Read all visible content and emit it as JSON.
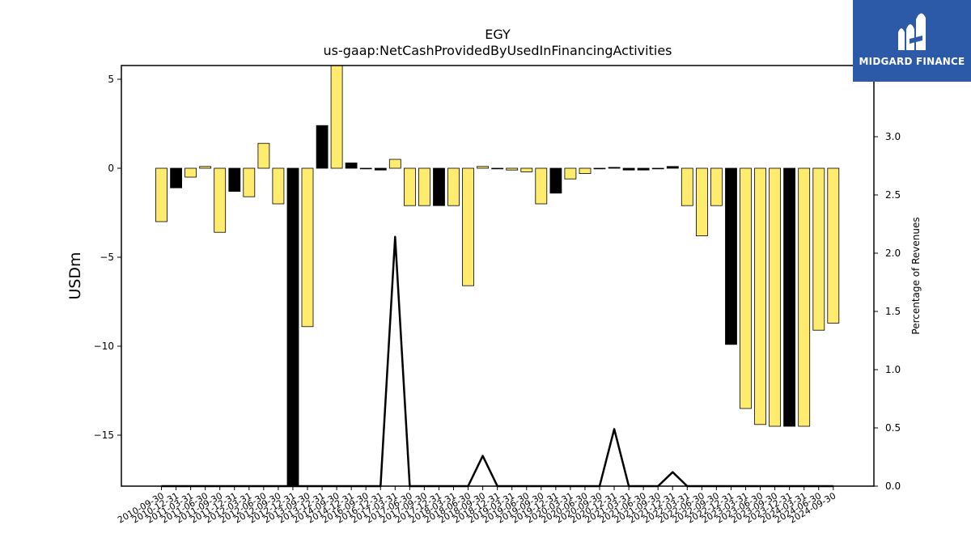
{
  "chart_data": {
    "type": "bar",
    "title": "EGY",
    "subtitle": "us-gaap:NetCashProvidedByUsedInFinancingActivities",
    "ylabel": "USDm",
    "y2label": "Percentage of Revenues",
    "ylim": [
      -17.8,
      5.8
    ],
    "y2lim": [
      0.0,
      3.6
    ],
    "yticks": [
      5,
      0,
      -5,
      -10,
      -15
    ],
    "ytick_labels": [
      "5",
      "0",
      "−5",
      "−10",
      "−15"
    ],
    "y2ticks": [
      0.0,
      0.5,
      1.0,
      1.5,
      2.0,
      2.5,
      3.0
    ],
    "y2tick_labels": [
      "0.0",
      "0.5",
      "1.0",
      "1.5",
      "2.0",
      "2.5",
      "3.0"
    ],
    "categories": [
      "2010-09-30",
      "2010-12-31",
      "2011-03-31",
      "2011-06-30",
      "2011-09-30",
      "2011-12-31",
      "2012-03-31",
      "2012-06-30",
      "2012-09-30",
      "2012-12-31",
      "2013-09-30",
      "2013-12-31",
      "2014-09-30",
      "2014-12-31",
      "2016-09-30",
      "2016-12-31",
      "2017-03-31",
      "2017-06-30",
      "2017-09-30",
      "2017-12-31",
      "2018-03-31",
      "2018-06-30",
      "2018-09-30",
      "2018-12-31",
      "2019-03-31",
      "2019-06-30",
      "2019-09-30",
      "2019-12-31",
      "2020-03-31",
      "2020-06-30",
      "2020-09-30",
      "2020-12-31",
      "2021-03-31",
      "2021-06-30",
      "2021-09-30",
      "2021-12-31",
      "2022-03-31",
      "2022-06-30",
      "2022-09-30",
      "2022-12-31",
      "2023-03-31",
      "2023-06-30",
      "2023-09-30",
      "2023-12-31",
      "2024-03-31",
      "2024-06-30",
      "2024-09-30"
    ],
    "values": [
      -3.0,
      -1.1,
      -0.5,
      0.1,
      -3.6,
      -1.3,
      -1.6,
      1.4,
      -2.0,
      -17.8,
      -8.9,
      2.4,
      5.9,
      0.3,
      0.0,
      -0.1,
      0.5,
      -2.1,
      -2.1,
      -2.1,
      -2.1,
      -6.6,
      0.1,
      0.0,
      -0.1,
      -0.2,
      -2.0,
      -1.4,
      -0.6,
      -0.3,
      0.0,
      0.05,
      -0.1,
      -0.1,
      0.0,
      0.1,
      -2.1,
      -3.8,
      -2.1,
      -9.9,
      -13.5,
      -14.4,
      -14.5,
      -14.5,
      -14.5,
      -9.1,
      -8.7
    ],
    "bar_colors": [
      "#ffec6e",
      "#000000",
      "#ffec6e",
      "#ffec6e",
      "#ffec6e",
      "#000000",
      "#ffec6e",
      "#ffec6e",
      "#ffec6e",
      "#000000",
      "#ffec6e",
      "#000000",
      "#ffec6e",
      "#000000",
      "#ffec6e",
      "#000000",
      "#ffec6e",
      "#ffec6e",
      "#ffec6e",
      "#000000",
      "#ffec6e",
      "#ffec6e",
      "#ffec6e",
      "#000000",
      "#ffec6e",
      "#ffec6e",
      "#ffec6e",
      "#000000",
      "#ffec6e",
      "#ffec6e",
      "#ffec6e",
      "#000000",
      "#000000",
      "#000000",
      "#000000",
      "#000000",
      "#ffec6e",
      "#ffec6e",
      "#ffec6e",
      "#000000",
      "#ffec6e",
      "#ffec6e",
      "#ffec6e",
      "#000000",
      "#ffec6e",
      "#ffec6e",
      "#ffec6e"
    ],
    "line_series": {
      "axis": "right",
      "values": [
        0,
        0,
        0,
        0,
        0,
        0,
        0,
        0,
        0,
        0,
        0,
        0,
        0,
        0,
        0,
        0,
        2.14,
        0,
        0,
        0,
        0,
        0,
        0.26,
        0,
        0,
        0,
        0,
        0,
        0,
        0,
        0,
        0.49,
        0,
        0,
        0,
        0.12,
        0,
        0,
        0,
        0,
        0,
        0,
        0,
        0,
        0,
        0,
        0
      ],
      "color": "#000000"
    },
    "grid": false
  },
  "logo": {
    "text": "MIDGARD FINANCE",
    "bg_color": "#2d5aa8"
  }
}
